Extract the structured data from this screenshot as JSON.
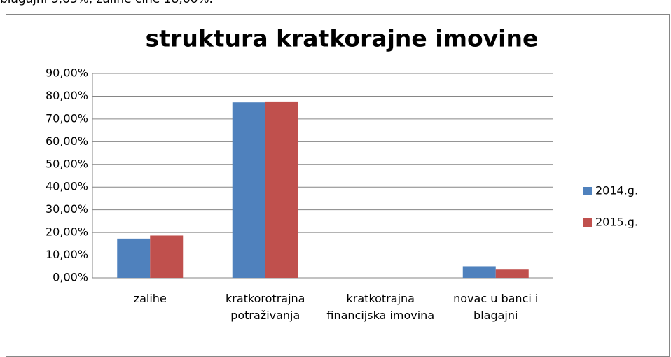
{
  "text": "blagajni 3,63%, zalihe čine 18,66%.",
  "chart_data": {
    "type": "bar",
    "title": "struktura kratkorajne imovine",
    "categories": [
      "zalihe",
      "kratkorotrajna potraživanja",
      "kratkotrajna financijska imovina",
      "novac u banci i blagajni"
    ],
    "series": [
      {
        "name": "2014.g.",
        "color": "#4f81bd",
        "values": [
          17.3,
          77.3,
          0,
          5.1
        ]
      },
      {
        "name": "2015.g.",
        "color": "#c0504d",
        "values": [
          18.66,
          77.7,
          0,
          3.63
        ]
      }
    ],
    "ylim": [
      0,
      90
    ],
    "yticks": [
      {
        "value": 0,
        "label": "0,00%"
      },
      {
        "value": 10,
        "label": "10,00%"
      },
      {
        "value": 20,
        "label": "20,00%"
      },
      {
        "value": 30,
        "label": "30,00%"
      },
      {
        "value": 40,
        "label": "40,00%"
      },
      {
        "value": 50,
        "label": "50,00%"
      },
      {
        "value": 60,
        "label": "60,00%"
      },
      {
        "value": 70,
        "label": "70,00%"
      },
      {
        "value": 80,
        "label": "80,00%"
      },
      {
        "value": 90,
        "label": "90,00%"
      }
    ],
    "grid": true,
    "legend": "right"
  }
}
